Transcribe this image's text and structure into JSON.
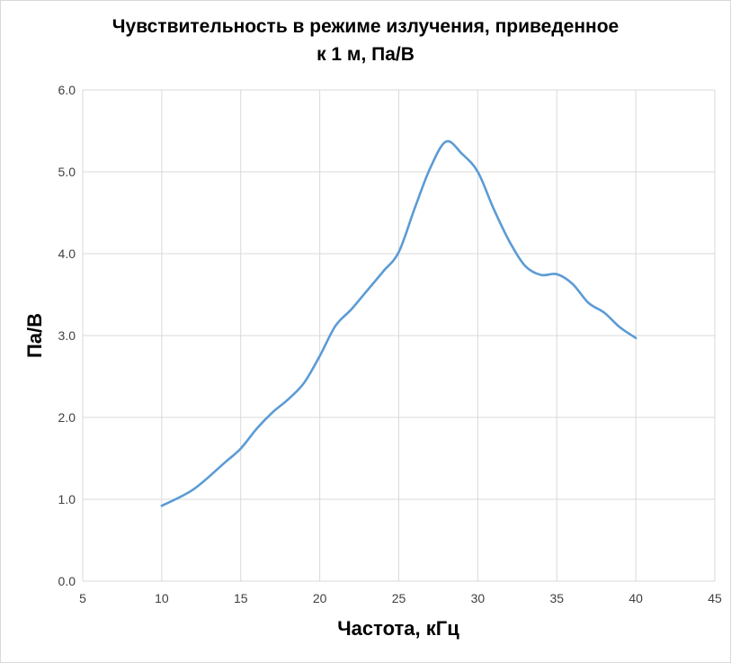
{
  "chart_data": {
    "type": "line",
    "title_line1": "Чувствительность в режиме излучения, приведенное",
    "title_line2": "к 1 м, Па/В",
    "xlabel": "Частота, кГц",
    "ylabel": "Па/В",
    "xlim": [
      5,
      45
    ],
    "ylim": [
      0,
      6
    ],
    "x_ticks": [
      "5",
      "10",
      "15",
      "20",
      "25",
      "30",
      "35",
      "40",
      "45"
    ],
    "y_ticks": [
      "0.0",
      "1.0",
      "2.0",
      "3.0",
      "4.0",
      "5.0",
      "6.0"
    ],
    "grid": true,
    "line_color": "#5b9bd5",
    "series": [
      {
        "x": [
          10,
          12,
          14,
          15,
          16,
          17,
          18,
          19,
          20,
          21,
          22,
          23,
          24,
          25,
          26,
          27,
          28,
          29,
          30,
          31,
          32,
          33,
          34,
          35,
          36,
          37,
          38,
          39,
          40
        ],
        "values": [
          0.92,
          1.12,
          1.45,
          1.62,
          1.86,
          2.06,
          2.22,
          2.42,
          2.75,
          3.12,
          3.32,
          3.55,
          3.78,
          4.02,
          4.55,
          5.05,
          5.37,
          5.22,
          5.0,
          4.55,
          4.15,
          3.85,
          3.74,
          3.75,
          3.63,
          3.4,
          3.28,
          3.1,
          2.97
        ]
      }
    ]
  }
}
